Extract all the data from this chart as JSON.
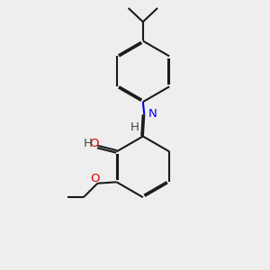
{
  "bg_color": "#eeeeee",
  "bond_color": "#1a1a1a",
  "n_color": "#0000ee",
  "o_color": "#dd0000",
  "h_color": "#444444",
  "lw": 1.5,
  "dbo": 0.055,
  "xlim": [
    0,
    10
  ],
  "ylim": [
    0,
    10
  ]
}
